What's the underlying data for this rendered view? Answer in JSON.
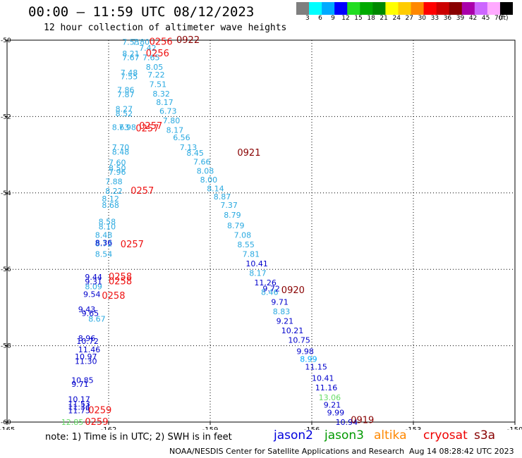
{
  "header": {
    "title": "00:00 – 11:59 UTC 08/12/2023",
    "subtitle": "12 hour collection of altimeter wave heights"
  },
  "legend": {
    "unit": "(ft)",
    "bins": [
      {
        "label": "3",
        "color": "#7f7f7f"
      },
      {
        "label": "6",
        "color": "#00ffff"
      },
      {
        "label": "9",
        "color": "#00aaff"
      },
      {
        "label": "12",
        "color": "#0000ff"
      },
      {
        "label": "15",
        "color": "#22dd22"
      },
      {
        "label": "18",
        "color": "#00aa00"
      },
      {
        "label": "21",
        "color": "#008800"
      },
      {
        "label": "24",
        "color": "#ffff00"
      },
      {
        "label": "27",
        "color": "#ffcc00"
      },
      {
        "label": "30",
        "color": "#ff8800"
      },
      {
        "label": "33",
        "color": "#ff0000"
      },
      {
        "label": "36",
        "color": "#cc0000"
      },
      {
        "label": "39",
        "color": "#880000"
      },
      {
        "label": "42",
        "color": "#aa00aa"
      },
      {
        "label": "45",
        "color": "#cc66ff"
      },
      {
        "label": "70",
        "color": "#ffaaff"
      },
      {
        "label": "",
        "color": "#000000"
      }
    ]
  },
  "chart_data": {
    "type": "scatter",
    "xlim": [
      -165,
      -150
    ],
    "ylim": [
      -60,
      -50
    ],
    "xticks": [
      "-165",
      "-162",
      "-159",
      "-156",
      "-153",
      "-150"
    ],
    "yticks": [
      "-50",
      "-52",
      "-54",
      "-56",
      "-58",
      "-60"
    ],
    "grid": true,
    "series": [
      {
        "color": "#29a9e0",
        "points": [
          {
            "x": -161.6,
            "y": -50.05,
            "label": "7.53"
          },
          {
            "x": -161.6,
            "y": -50.35,
            "label": "8.21"
          },
          {
            "x": -161.6,
            "y": -50.45,
            "label": "7.67"
          },
          {
            "x": -161.3,
            "y": -50.05,
            "label": "7.80"
          },
          {
            "x": -161.1,
            "y": -50.2,
            "label": "7.42"
          },
          {
            "x": -161.0,
            "y": -50.45,
            "label": "7.65"
          },
          {
            "x": -160.9,
            "y": -50.7,
            "label": "8.05"
          },
          {
            "x": -161.65,
            "y": -50.85,
            "label": "7.48"
          },
          {
            "x": -161.65,
            "y": -50.95,
            "label": "7.55"
          },
          {
            "x": -160.85,
            "y": -50.9,
            "label": "7.22"
          },
          {
            "x": -160.8,
            "y": -51.15,
            "label": "7.51"
          },
          {
            "x": -161.75,
            "y": -51.3,
            "label": "7.86"
          },
          {
            "x": -161.75,
            "y": -51.42,
            "label": "7.87"
          },
          {
            "x": -160.7,
            "y": -51.4,
            "label": "8.32"
          },
          {
            "x": -160.6,
            "y": -51.62,
            "label": "8.17"
          },
          {
            "x": -161.8,
            "y": -51.8,
            "label": "8.27"
          },
          {
            "x": -161.8,
            "y": -51.92,
            "label": "8.52"
          },
          {
            "x": -160.5,
            "y": -51.85,
            "label": "6.73"
          },
          {
            "x": -160.4,
            "y": -52.1,
            "label": "7.80"
          },
          {
            "x": -161.9,
            "y": -52.28,
            "label": "8.63"
          },
          {
            "x": -161.7,
            "y": -52.28,
            "label": "7.98"
          },
          {
            "x": -160.3,
            "y": -52.35,
            "label": "8.17"
          },
          {
            "x": -160.1,
            "y": -52.55,
            "label": "6.56"
          },
          {
            "x": -159.9,
            "y": -52.8,
            "label": "7.13"
          },
          {
            "x": -161.9,
            "y": -52.8,
            "label": "7.70"
          },
          {
            "x": -161.9,
            "y": -52.92,
            "label": "8.48"
          },
          {
            "x": -159.7,
            "y": -52.95,
            "label": "8.45"
          },
          {
            "x": -159.5,
            "y": -53.18,
            "label": "7.66"
          },
          {
            "x": -162.0,
            "y": -53.2,
            "label": "7.60"
          },
          {
            "x": -162.0,
            "y": -53.35,
            "label": "8.50"
          },
          {
            "x": -162.0,
            "y": -53.45,
            "label": "7.96"
          },
          {
            "x": -159.4,
            "y": -53.42,
            "label": "8.08"
          },
          {
            "x": -162.1,
            "y": -53.7,
            "label": "7.88"
          },
          {
            "x": -159.3,
            "y": -53.65,
            "label": "8.00"
          },
          {
            "x": -162.1,
            "y": -53.95,
            "label": "8.22"
          },
          {
            "x": -159.1,
            "y": -53.88,
            "label": "8.14"
          },
          {
            "x": -162.2,
            "y": -54.15,
            "label": "8.12"
          },
          {
            "x": -162.2,
            "y": -54.32,
            "label": "8.68"
          },
          {
            "x": -158.9,
            "y": -54.1,
            "label": "8.87"
          },
          {
            "x": -158.7,
            "y": -54.32,
            "label": "7.37"
          },
          {
            "x": -162.3,
            "y": -54.75,
            "label": "8.58"
          },
          {
            "x": -162.3,
            "y": -54.88,
            "label": "8.10"
          },
          {
            "x": -158.6,
            "y": -54.58,
            "label": "8.79"
          },
          {
            "x": -158.5,
            "y": -54.85,
            "label": "8.79"
          },
          {
            "x": -162.4,
            "y": -55.1,
            "label": "8.48"
          },
          {
            "x": -162.4,
            "y": -55.32,
            "label": "8.72"
          },
          {
            "x": -158.3,
            "y": -55.1,
            "label": "7.08"
          },
          {
            "x": -158.2,
            "y": -55.35,
            "label": "8.55"
          },
          {
            "x": -162.4,
            "y": -55.6,
            "label": "8.54"
          },
          {
            "x": -158.05,
            "y": -55.6,
            "label": "7.81"
          },
          {
            "x": -157.85,
            "y": -56.1,
            "label": "8.17"
          },
          {
            "x": -162.7,
            "y": -56.45,
            "label": "8.09"
          },
          {
            "x": -157.5,
            "y": -56.6,
            "label": "8.46"
          },
          {
            "x": -162.6,
            "y": -57.3,
            "label": "8.67"
          },
          {
            "x": -157.15,
            "y": -57.1,
            "label": "8.83"
          }
        ]
      },
      {
        "color": "#0000cc",
        "points": [
          {
            "x": -162.4,
            "y": -55.3,
            "label": "8.36"
          },
          {
            "x": -157.95,
            "y": -55.85,
            "label": "10.41"
          },
          {
            "x": -162.7,
            "y": -56.2,
            "label": "9.44"
          },
          {
            "x": -162.7,
            "y": -56.32,
            "label": "9.31"
          },
          {
            "x": -157.7,
            "y": -56.35,
            "label": "11.26"
          },
          {
            "x": -157.45,
            "y": -56.5,
            "label": "9.72"
          },
          {
            "x": -162.75,
            "y": -56.65,
            "label": "9.54"
          },
          {
            "x": -157.2,
            "y": -56.85,
            "label": "9.71"
          },
          {
            "x": -162.9,
            "y": -57.05,
            "label": "9.43"
          },
          {
            "x": -162.8,
            "y": -57.15,
            "label": "9.65"
          },
          {
            "x": -157.05,
            "y": -57.35,
            "label": "9.21"
          },
          {
            "x": -156.9,
            "y": -57.6,
            "label": "10.21"
          },
          {
            "x": -162.9,
            "y": -57.8,
            "label": "8.96"
          },
          {
            "x": -162.95,
            "y": -57.88,
            "label": "10.72"
          },
          {
            "x": -156.7,
            "y": -57.85,
            "label": "10.75"
          },
          {
            "x": -162.9,
            "y": -58.1,
            "label": "11.46"
          },
          {
            "x": -156.45,
            "y": -58.15,
            "label": "9.98"
          },
          {
            "x": -163.0,
            "y": -58.28,
            "label": "10.97"
          },
          {
            "x": -163.0,
            "y": -58.4,
            "label": "11.30"
          },
          {
            "x": -156.2,
            "y": -58.55,
            "label": "11.15"
          },
          {
            "x": -156.0,
            "y": -58.85,
            "label": "10.41"
          },
          {
            "x": -163.1,
            "y": -58.9,
            "label": "10.85"
          },
          {
            "x": -163.1,
            "y": -59.0,
            "label": "9.71"
          },
          {
            "x": -155.9,
            "y": -59.1,
            "label": "11.16"
          },
          {
            "x": -163.2,
            "y": -59.4,
            "label": "10.17"
          },
          {
            "x": -163.2,
            "y": -59.52,
            "label": "11.53"
          },
          {
            "x": -163.2,
            "y": -59.6,
            "label": "11.34"
          },
          {
            "x": -163.2,
            "y": -59.7,
            "label": "11.75"
          },
          {
            "x": -155.65,
            "y": -59.55,
            "label": "9.21"
          },
          {
            "x": -155.55,
            "y": -59.75,
            "label": "9.99"
          },
          {
            "x": -155.3,
            "y": -60.0,
            "label": "10.94"
          }
        ]
      },
      {
        "color": "#00aaff",
        "points": [
          {
            "x": -156.35,
            "y": -58.35,
            "label": "8.99"
          }
        ]
      },
      {
        "color": "#66dd66",
        "points": [
          {
            "x": -155.8,
            "y": -59.35,
            "label": "13.06"
          },
          {
            "x": -163.4,
            "y": -60.0,
            "label": "12.85"
          }
        ]
      },
      {
        "color": "#ee1111",
        "points": [
          {
            "x": -160.8,
            "y": -50.05,
            "label": "0256"
          },
          {
            "x": -160.9,
            "y": -50.35,
            "label": "0256"
          },
          {
            "x": -161.1,
            "y": -52.25,
            "label": "0257"
          },
          {
            "x": -161.2,
            "y": -52.32,
            "label": "0257"
          },
          {
            "x": -161.35,
            "y": -53.95,
            "label": "0257"
          },
          {
            "x": -161.65,
            "y": -55.35,
            "label": "0257"
          },
          {
            "x": -162.0,
            "y": -56.2,
            "label": "0258"
          },
          {
            "x": -162.0,
            "y": -56.32,
            "label": "0258"
          },
          {
            "x": -162.2,
            "y": -56.7,
            "label": "0258"
          },
          {
            "x": -162.6,
            "y": -59.7,
            "label": "0259"
          },
          {
            "x": -162.7,
            "y": -60.0,
            "label": "0259"
          }
        ]
      },
      {
        "color": "#880000",
        "points": [
          {
            "x": -160.0,
            "y": -50.0,
            "label": "0922"
          },
          {
            "x": -158.2,
            "y": -52.95,
            "label": "0921"
          },
          {
            "x": -156.9,
            "y": -56.55,
            "label": "0920"
          },
          {
            "x": -154.85,
            "y": -59.95,
            "label": "0919"
          }
        ]
      }
    ]
  },
  "footer": {
    "note": "note:  1) Time is in UTC;  2) SWH is in feet",
    "satellites": [
      {
        "name": "jason2",
        "color": "#0000dd"
      },
      {
        "name": "jason3",
        "color": "#009900"
      },
      {
        "name": "altika",
        "color": "#ff8800"
      },
      {
        "name": "cryosat",
        "color": "#ee0000"
      },
      {
        "name": "s3a",
        "color": "#880000"
      }
    ],
    "credit": "NOAA/NESDIS Center for Satellite Applications and Research",
    "timestamp": "Aug 14 08:28:42 UTC 2023"
  }
}
